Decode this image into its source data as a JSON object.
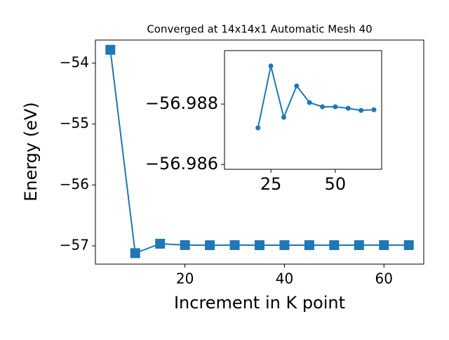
{
  "chart_data": [
    {
      "type": "line",
      "title": "Converged at 14x14x1 Automatic Mesh 40",
      "x_label": "Increment in K point",
      "y_label": "Energy (eV)",
      "x": [
        5,
        10,
        15,
        20,
        25,
        30,
        35,
        40,
        45,
        50,
        55,
        60,
        65
      ],
      "series": [
        {
          "color": "#1f77b4",
          "marker": "square",
          "values": [
            -53.78,
            -57.12,
            -56.965,
            -56.98721,
            -56.98926,
            -56.98756,
            -56.9886,
            -56.98805,
            -56.98791,
            -56.98791,
            -56.98786,
            -56.98779,
            -56.98781
          ]
        }
      ],
      "xlim": [
        2,
        68
      ],
      "ylim": [
        -57.3,
        -53.62
      ],
      "xticks": [
        20,
        40,
        60
      ],
      "yticks": [
        {
          "value": -54,
          "label": "−54"
        },
        {
          "value": -55,
          "label": "−55"
        },
        {
          "value": -56,
          "label": "−56"
        },
        {
          "value": -57,
          "label": "−57"
        }
      ]
    },
    {
      "type": "line",
      "x": [
        20,
        25,
        30,
        35,
        40,
        45,
        50,
        55,
        60,
        65
      ],
      "series": [
        {
          "color": "#1f77b4",
          "marker": "circle",
          "values": [
            -56.98721,
            -56.98926,
            -56.98756,
            -56.9886,
            -56.98805,
            -56.98791,
            -56.98791,
            -56.98786,
            -56.98779,
            -56.98781
          ]
        }
      ],
      "xlim": [
        7,
        68
      ],
      "ylim": [
        -56.98584,
        -56.98977
      ],
      "xticks": [
        25,
        50
      ],
      "yticks": [
        {
          "value": -56.988,
          "label": "−56.988"
        },
        {
          "value": -56.986,
          "label": "−56.986"
        }
      ]
    }
  ]
}
